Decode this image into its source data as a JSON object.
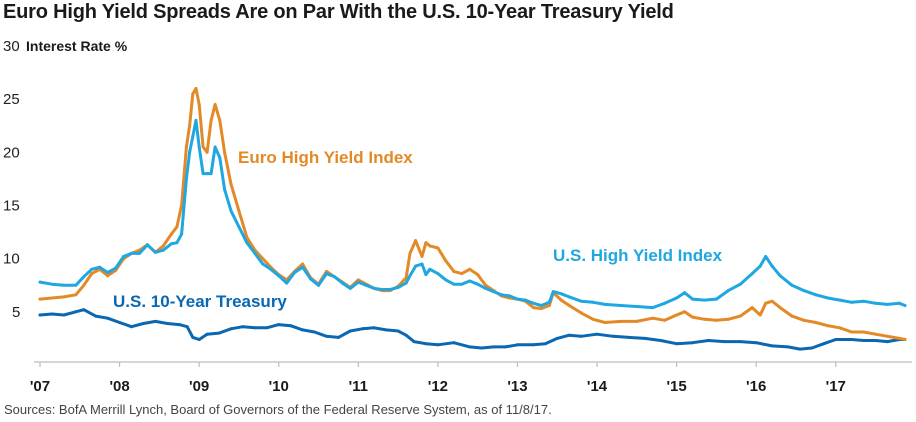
{
  "chart_data": {
    "type": "line",
    "title": "Euro High Yield Spreads Are on Par With the U.S. 10-Year Treasury Yield",
    "ylabel": "Interest Rate %",
    "xlabel": "",
    "ylim": [
      0,
      30
    ],
    "xlim": [
      2007.0,
      2017.87
    ],
    "yticks": [
      5,
      10,
      15,
      20,
      25,
      30
    ],
    "ytick_labels": [
      "5",
      "10",
      "15",
      "20",
      "25",
      "30"
    ],
    "xticks": [
      2007,
      2008,
      2009,
      2010,
      2011,
      2012,
      2013,
      2014,
      2015,
      2016,
      2017
    ],
    "xtick_labels": [
      "'07",
      "'08",
      "'09",
      "'10",
      "'11",
      "'12",
      "'13",
      "'14",
      "'15",
      "'16",
      "'17"
    ],
    "grid": false,
    "source": "Sources: BofA Merrill Lynch, Board of Governors of the Federal Reserve System, as of 11/8/17.",
    "series": [
      {
        "name": "Euro High Yield Index",
        "color": "#E38A27",
        "label": "Euro High Yield Index",
        "x": [
          2007.0,
          2007.15,
          2007.3,
          2007.45,
          2007.55,
          2007.65,
          2007.75,
          2007.85,
          2007.95,
          2008.05,
          2008.15,
          2008.25,
          2008.35,
          2008.45,
          2008.55,
          2008.65,
          2008.72,
          2008.78,
          2008.84,
          2008.88,
          2008.92,
          2008.96,
          2009.0,
          2009.05,
          2009.1,
          2009.15,
          2009.2,
          2009.26,
          2009.32,
          2009.4,
          2009.5,
          2009.6,
          2009.7,
          2009.8,
          2009.9,
          2010.0,
          2010.1,
          2010.2,
          2010.3,
          2010.4,
          2010.5,
          2010.6,
          2010.7,
          2010.8,
          2010.9,
          2011.0,
          2011.1,
          2011.2,
          2011.3,
          2011.4,
          2011.5,
          2011.6,
          2011.65,
          2011.72,
          2011.8,
          2011.85,
          2011.9,
          2012.0,
          2012.1,
          2012.2,
          2012.3,
          2012.4,
          2012.5,
          2012.6,
          2012.7,
          2012.8,
          2012.9,
          2013.0,
          2013.1,
          2013.2,
          2013.3,
          2013.4,
          2013.45,
          2013.55,
          2013.65,
          2013.8,
          2013.95,
          2014.1,
          2014.3,
          2014.5,
          2014.7,
          2014.85,
          2015.0,
          2015.1,
          2015.2,
          2015.35,
          2015.5,
          2015.65,
          2015.8,
          2015.95,
          2016.05,
          2016.12,
          2016.2,
          2016.3,
          2016.45,
          2016.6,
          2016.75,
          2016.9,
          2017.05,
          2017.2,
          2017.35,
          2017.5,
          2017.65,
          2017.8,
          2017.87
        ],
        "y": [
          6.2,
          6.3,
          6.4,
          6.6,
          7.5,
          8.6,
          9.0,
          8.4,
          8.9,
          10.0,
          10.5,
          10.8,
          11.3,
          10.6,
          11.2,
          12.3,
          13.0,
          15.0,
          20.5,
          22.5,
          25.5,
          26.0,
          24.5,
          20.5,
          20.0,
          23.0,
          24.5,
          23.0,
          20.0,
          17.0,
          14.5,
          12.0,
          10.8,
          10.0,
          9.2,
          8.5,
          8.0,
          8.8,
          9.5,
          8.2,
          7.6,
          8.8,
          8.3,
          7.8,
          7.3,
          8.0,
          7.6,
          7.2,
          7.0,
          7.0,
          7.4,
          8.2,
          10.5,
          11.7,
          10.2,
          11.5,
          11.2,
          11.0,
          9.8,
          8.8,
          8.6,
          9.0,
          8.5,
          7.5,
          7.0,
          6.5,
          6.3,
          6.2,
          6.0,
          5.4,
          5.3,
          5.6,
          6.8,
          6.1,
          5.6,
          4.9,
          4.3,
          4.0,
          4.1,
          4.1,
          4.4,
          4.2,
          4.7,
          5.0,
          4.5,
          4.3,
          4.2,
          4.3,
          4.6,
          5.4,
          4.7,
          5.8,
          6.0,
          5.4,
          4.6,
          4.2,
          4.0,
          3.7,
          3.5,
          3.1,
          3.1,
          2.9,
          2.7,
          2.5,
          2.4
        ]
      },
      {
        "name": "U.S. High Yield Index",
        "color": "#1EA7E1",
        "label": "U.S. High Yield Index",
        "x": [
          2007.0,
          2007.15,
          2007.3,
          2007.45,
          2007.55,
          2007.65,
          2007.75,
          2007.85,
          2007.95,
          2008.05,
          2008.15,
          2008.25,
          2008.35,
          2008.45,
          2008.55,
          2008.65,
          2008.72,
          2008.78,
          2008.84,
          2008.88,
          2008.92,
          2008.96,
          2009.0,
          2009.05,
          2009.1,
          2009.15,
          2009.2,
          2009.26,
          2009.32,
          2009.4,
          2009.5,
          2009.6,
          2009.7,
          2009.8,
          2009.9,
          2010.0,
          2010.1,
          2010.2,
          2010.3,
          2010.4,
          2010.5,
          2010.6,
          2010.7,
          2010.8,
          2010.9,
          2011.0,
          2011.1,
          2011.2,
          2011.3,
          2011.4,
          2011.5,
          2011.6,
          2011.65,
          2011.72,
          2011.8,
          2011.85,
          2011.9,
          2012.0,
          2012.1,
          2012.2,
          2012.3,
          2012.4,
          2012.5,
          2012.6,
          2012.7,
          2012.8,
          2012.9,
          2013.0,
          2013.1,
          2013.2,
          2013.3,
          2013.4,
          2013.45,
          2013.55,
          2013.65,
          2013.8,
          2013.95,
          2014.1,
          2014.3,
          2014.5,
          2014.7,
          2014.85,
          2015.0,
          2015.1,
          2015.2,
          2015.35,
          2015.5,
          2015.65,
          2015.8,
          2015.95,
          2016.05,
          2016.12,
          2016.2,
          2016.3,
          2016.45,
          2016.6,
          2016.75,
          2016.9,
          2017.05,
          2017.2,
          2017.35,
          2017.5,
          2017.65,
          2017.8,
          2017.87
        ],
        "y": [
          7.8,
          7.6,
          7.5,
          7.5,
          8.3,
          9.0,
          9.2,
          8.7,
          9.1,
          10.2,
          10.5,
          10.5,
          11.3,
          10.6,
          10.8,
          11.4,
          11.5,
          12.3,
          17.5,
          20.0,
          21.5,
          23.0,
          20.5,
          18.0,
          18.0,
          18.0,
          20.5,
          19.5,
          16.5,
          14.5,
          13.0,
          11.5,
          10.5,
          9.5,
          9.0,
          8.4,
          7.7,
          8.7,
          9.2,
          8.1,
          7.5,
          8.6,
          8.3,
          7.7,
          7.2,
          7.8,
          7.5,
          7.2,
          7.1,
          7.1,
          7.3,
          7.7,
          8.4,
          9.3,
          9.5,
          8.5,
          9.0,
          8.6,
          8.0,
          7.6,
          7.6,
          7.9,
          7.6,
          7.2,
          6.9,
          6.6,
          6.5,
          6.2,
          6.1,
          5.8,
          5.6,
          5.9,
          6.9,
          6.7,
          6.4,
          6.0,
          5.9,
          5.7,
          5.6,
          5.5,
          5.4,
          5.8,
          6.3,
          6.8,
          6.2,
          6.1,
          6.2,
          7.0,
          7.6,
          8.6,
          9.3,
          10.2,
          9.3,
          8.4,
          7.5,
          7.0,
          6.6,
          6.3,
          6.1,
          5.9,
          6.0,
          5.8,
          5.7,
          5.8,
          5.6
        ]
      },
      {
        "name": "U.S. 10-Year Treasury",
        "color": "#0A67B2",
        "label": "U.S. 10-Year Treasury",
        "x": [
          2007.0,
          2007.15,
          2007.3,
          2007.45,
          2007.55,
          2007.7,
          2007.85,
          2008.0,
          2008.15,
          2008.3,
          2008.45,
          2008.6,
          2008.75,
          2008.85,
          2008.92,
          2009.0,
          2009.1,
          2009.25,
          2009.4,
          2009.55,
          2009.7,
          2009.85,
          2010.0,
          2010.15,
          2010.3,
          2010.45,
          2010.6,
          2010.75,
          2010.9,
          2011.05,
          2011.2,
          2011.35,
          2011.5,
          2011.6,
          2011.7,
          2011.85,
          2012.0,
          2012.2,
          2012.4,
          2012.55,
          2012.7,
          2012.85,
          2013.0,
          2013.2,
          2013.35,
          2013.5,
          2013.65,
          2013.8,
          2014.0,
          2014.2,
          2014.4,
          2014.6,
          2014.8,
          2015.0,
          2015.2,
          2015.4,
          2015.6,
          2015.8,
          2016.0,
          2016.2,
          2016.4,
          2016.55,
          2016.7,
          2016.85,
          2017.0,
          2017.2,
          2017.35,
          2017.5,
          2017.65,
          2017.8,
          2017.87
        ],
        "y": [
          4.7,
          4.8,
          4.7,
          5.0,
          5.2,
          4.6,
          4.4,
          4.0,
          3.6,
          3.9,
          4.1,
          3.9,
          3.8,
          3.6,
          2.6,
          2.4,
          2.9,
          3.0,
          3.4,
          3.6,
          3.5,
          3.5,
          3.8,
          3.7,
          3.3,
          3.1,
          2.7,
          2.6,
          3.2,
          3.4,
          3.5,
          3.3,
          3.2,
          2.8,
          2.2,
          2.0,
          1.9,
          2.1,
          1.7,
          1.6,
          1.7,
          1.7,
          1.9,
          1.9,
          2.0,
          2.5,
          2.8,
          2.7,
          2.9,
          2.7,
          2.6,
          2.5,
          2.3,
          2.0,
          2.1,
          2.3,
          2.2,
          2.2,
          2.1,
          1.8,
          1.7,
          1.5,
          1.6,
          2.0,
          2.4,
          2.4,
          2.3,
          2.3,
          2.2,
          2.4,
          2.4
        ]
      }
    ]
  }
}
